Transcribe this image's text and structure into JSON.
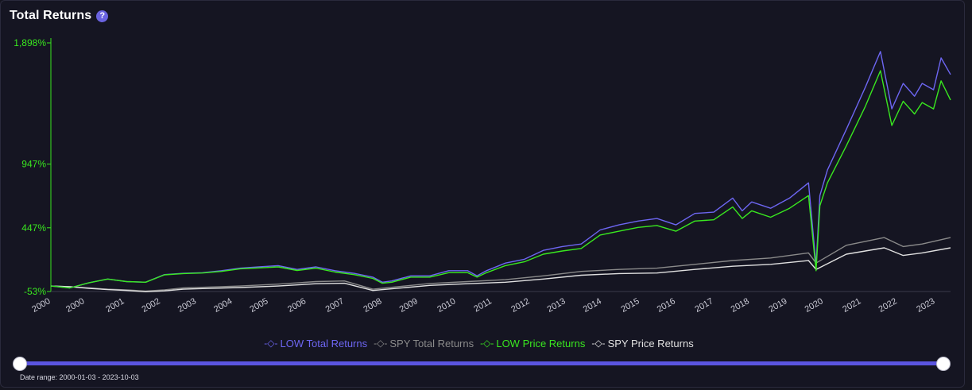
{
  "header": {
    "title": "Total Returns",
    "help_icon": "?"
  },
  "legend": [
    {
      "name": "LOW Total Returns",
      "color": "#6d66f2"
    },
    {
      "name": "SPY Total Returns",
      "color": "#8a8a8a"
    },
    {
      "name": "LOW Price Returns",
      "color": "#39e81f"
    },
    {
      "name": "SPY Price Returns",
      "color": "#e0e0e0"
    }
  ],
  "slider": {
    "date_range_label": "Date range: 2000-01-03 - 2023-10-03",
    "start_fraction": 0,
    "end_fraction": 1
  },
  "chart_data": {
    "type": "line",
    "y_unit": "%",
    "yticks": [
      "1,898%",
      "947%",
      "447%",
      "-53%"
    ],
    "ytick_values": [
      1898,
      947,
      447,
      -53
    ],
    "ylim": [
      -53,
      1898
    ],
    "xlim": [
      2000.0,
      2023.75
    ],
    "xtick_labels": [
      "2000",
      "2000",
      "2001",
      "2002",
      "2003",
      "2004",
      "2005",
      "2006",
      "2007",
      "2008",
      "2009",
      "2010",
      "2011",
      "2012",
      "2013",
      "2014",
      "2015",
      "2016",
      "2017",
      "2018",
      "2019",
      "2020",
      "2021",
      "2022",
      "2023"
    ],
    "xtick_positions": [
      2000.0,
      2000.9,
      2001.95,
      2002.9,
      2003.85,
      2004.8,
      2005.75,
      2006.75,
      2007.75,
      2008.75,
      2009.7,
      2010.7,
      2011.65,
      2012.65,
      2013.6,
      2014.55,
      2015.55,
      2016.5,
      2017.5,
      2018.45,
      2019.45,
      2020.4,
      2021.4,
      2022.35,
      2023.35
    ],
    "grid": false,
    "legend_position": "bottom",
    "series": [
      {
        "name": "LOW Total Returns",
        "x": [
          2000.0,
          2000.5,
          2001.0,
          2001.5,
          2002.0,
          2002.5,
          2003.0,
          2003.5,
          2004.0,
          2004.5,
          2005.0,
          2005.5,
          2006.0,
          2006.5,
          2007.0,
          2007.5,
          2008.0,
          2008.5,
          2008.75,
          2009.0,
          2009.5,
          2010.0,
          2010.5,
          2011.0,
          2011.25,
          2011.5,
          2012.0,
          2012.5,
          2013.0,
          2013.5,
          2014.0,
          2014.5,
          2015.0,
          2015.5,
          2016.0,
          2016.5,
          2017.0,
          2017.5,
          2018.0,
          2018.25,
          2018.5,
          2019.0,
          2019.5,
          2020.0,
          2020.2,
          2020.3,
          2020.5,
          2021.0,
          2021.5,
          2021.9,
          2022.2,
          2022.5,
          2022.8,
          2023.0,
          2023.3,
          2023.5,
          2023.75
        ],
        "y": [
          -10,
          -25,
          15,
          45,
          25,
          20,
          80,
          90,
          95,
          110,
          130,
          140,
          150,
          120,
          140,
          110,
          90,
          60,
          20,
          30,
          70,
          70,
          110,
          110,
          70,
          110,
          170,
          200,
          270,
          300,
          320,
          430,
          470,
          500,
          520,
          470,
          560,
          570,
          680,
          580,
          650,
          600,
          680,
          800,
          150,
          700,
          900,
          1220,
          1550,
          1830,
          1380,
          1580,
          1480,
          1580,
          1530,
          1780,
          1650
        ]
      },
      {
        "name": "SPY Total Returns",
        "x": [
          2000.0,
          2000.5,
          2001.0,
          2001.5,
          2002.0,
          2002.5,
          2003.0,
          2003.5,
          2004.0,
          2005.0,
          2006.0,
          2007.0,
          2007.75,
          2008.5,
          2009.0,
          2010.0,
          2011.0,
          2012.0,
          2013.0,
          2014.0,
          2015.0,
          2016.0,
          2017.0,
          2018.0,
          2019.0,
          2020.0,
          2020.2,
          2021.0,
          2022.0,
          2022.5,
          2023.0,
          2023.75
        ],
        "y": [
          -10,
          -15,
          -25,
          -35,
          -40,
          -50,
          -40,
          -25,
          -20,
          -10,
          5,
          25,
          30,
          -35,
          -20,
          10,
          25,
          40,
          70,
          105,
          120,
          130,
          160,
          190,
          210,
          250,
          170,
          310,
          370,
          300,
          320,
          370
        ]
      },
      {
        "name": "LOW Price Returns",
        "x": [
          2000.0,
          2000.5,
          2001.0,
          2001.5,
          2002.0,
          2002.5,
          2003.0,
          2003.5,
          2004.0,
          2004.5,
          2005.0,
          2005.5,
          2006.0,
          2006.5,
          2007.0,
          2007.5,
          2008.0,
          2008.5,
          2008.75,
          2009.0,
          2009.5,
          2010.0,
          2010.5,
          2011.0,
          2011.25,
          2011.5,
          2012.0,
          2012.5,
          2013.0,
          2013.5,
          2014.0,
          2014.5,
          2015.0,
          2015.5,
          2016.0,
          2016.5,
          2017.0,
          2017.5,
          2018.0,
          2018.25,
          2018.5,
          2019.0,
          2019.5,
          2020.0,
          2020.2,
          2020.3,
          2020.5,
          2021.0,
          2021.5,
          2021.9,
          2022.2,
          2022.5,
          2022.8,
          2023.0,
          2023.3,
          2023.5,
          2023.75
        ],
        "y": [
          -10,
          -25,
          15,
          45,
          25,
          20,
          78,
          88,
          92,
          105,
          125,
          132,
          140,
          112,
          130,
          100,
          80,
          50,
          12,
          20,
          60,
          60,
          95,
          95,
          60,
          95,
          150,
          180,
          240,
          265,
          285,
          390,
          420,
          450,
          465,
          420,
          500,
          510,
          610,
          520,
          580,
          530,
          600,
          700,
          110,
          620,
          800,
          1090,
          1400,
          1680,
          1250,
          1440,
          1340,
          1430,
          1380,
          1600,
          1450
        ]
      },
      {
        "name": "SPY Price Returns",
        "x": [
          2000.0,
          2000.5,
          2001.0,
          2001.5,
          2002.0,
          2002.5,
          2003.0,
          2003.5,
          2004.0,
          2005.0,
          2006.0,
          2007.0,
          2007.75,
          2008.5,
          2009.0,
          2010.0,
          2011.0,
          2012.0,
          2013.0,
          2014.0,
          2015.0,
          2016.0,
          2017.0,
          2018.0,
          2019.0,
          2020.0,
          2020.2,
          2021.0,
          2022.0,
          2022.5,
          2023.0,
          2023.75
        ],
        "y": [
          -10,
          -15,
          -28,
          -38,
          -45,
          -55,
          -48,
          -35,
          -30,
          -22,
          -10,
          8,
          12,
          -45,
          -32,
          -5,
          8,
          20,
          45,
          75,
          88,
          92,
          120,
          145,
          160,
          190,
          120,
          240,
          290,
          230,
          250,
          290
        ]
      }
    ]
  }
}
